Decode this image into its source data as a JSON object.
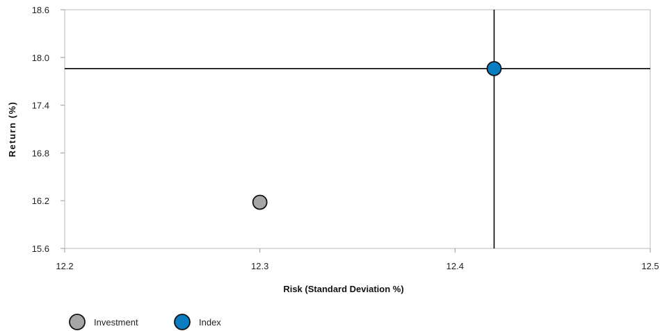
{
  "chart_data": {
    "type": "scatter",
    "xlabel": "Risk (Standard Deviation %)",
    "ylabel": "Return (%)",
    "xlim": [
      12.2,
      12.5
    ],
    "ylim": [
      15.6,
      18.6
    ],
    "xticks": [
      "12.2",
      "12.3",
      "12.4",
      "12.5"
    ],
    "yticks": [
      "18.6",
      "18.0",
      "17.4",
      "16.8",
      "16.2",
      "15.6"
    ],
    "grid": false,
    "legend_position": "bottom-left",
    "series": [
      {
        "name": "Investment",
        "color": "#a6a6a6",
        "points": [
          {
            "x": 12.3,
            "y": 16.18
          }
        ]
      },
      {
        "name": "Index",
        "color": "#0a7cc1",
        "points": [
          {
            "x": 12.42,
            "y": 17.86
          }
        ]
      }
    ],
    "crosshair": {
      "x": 12.42,
      "y": 17.86,
      "color": "#000000"
    }
  }
}
